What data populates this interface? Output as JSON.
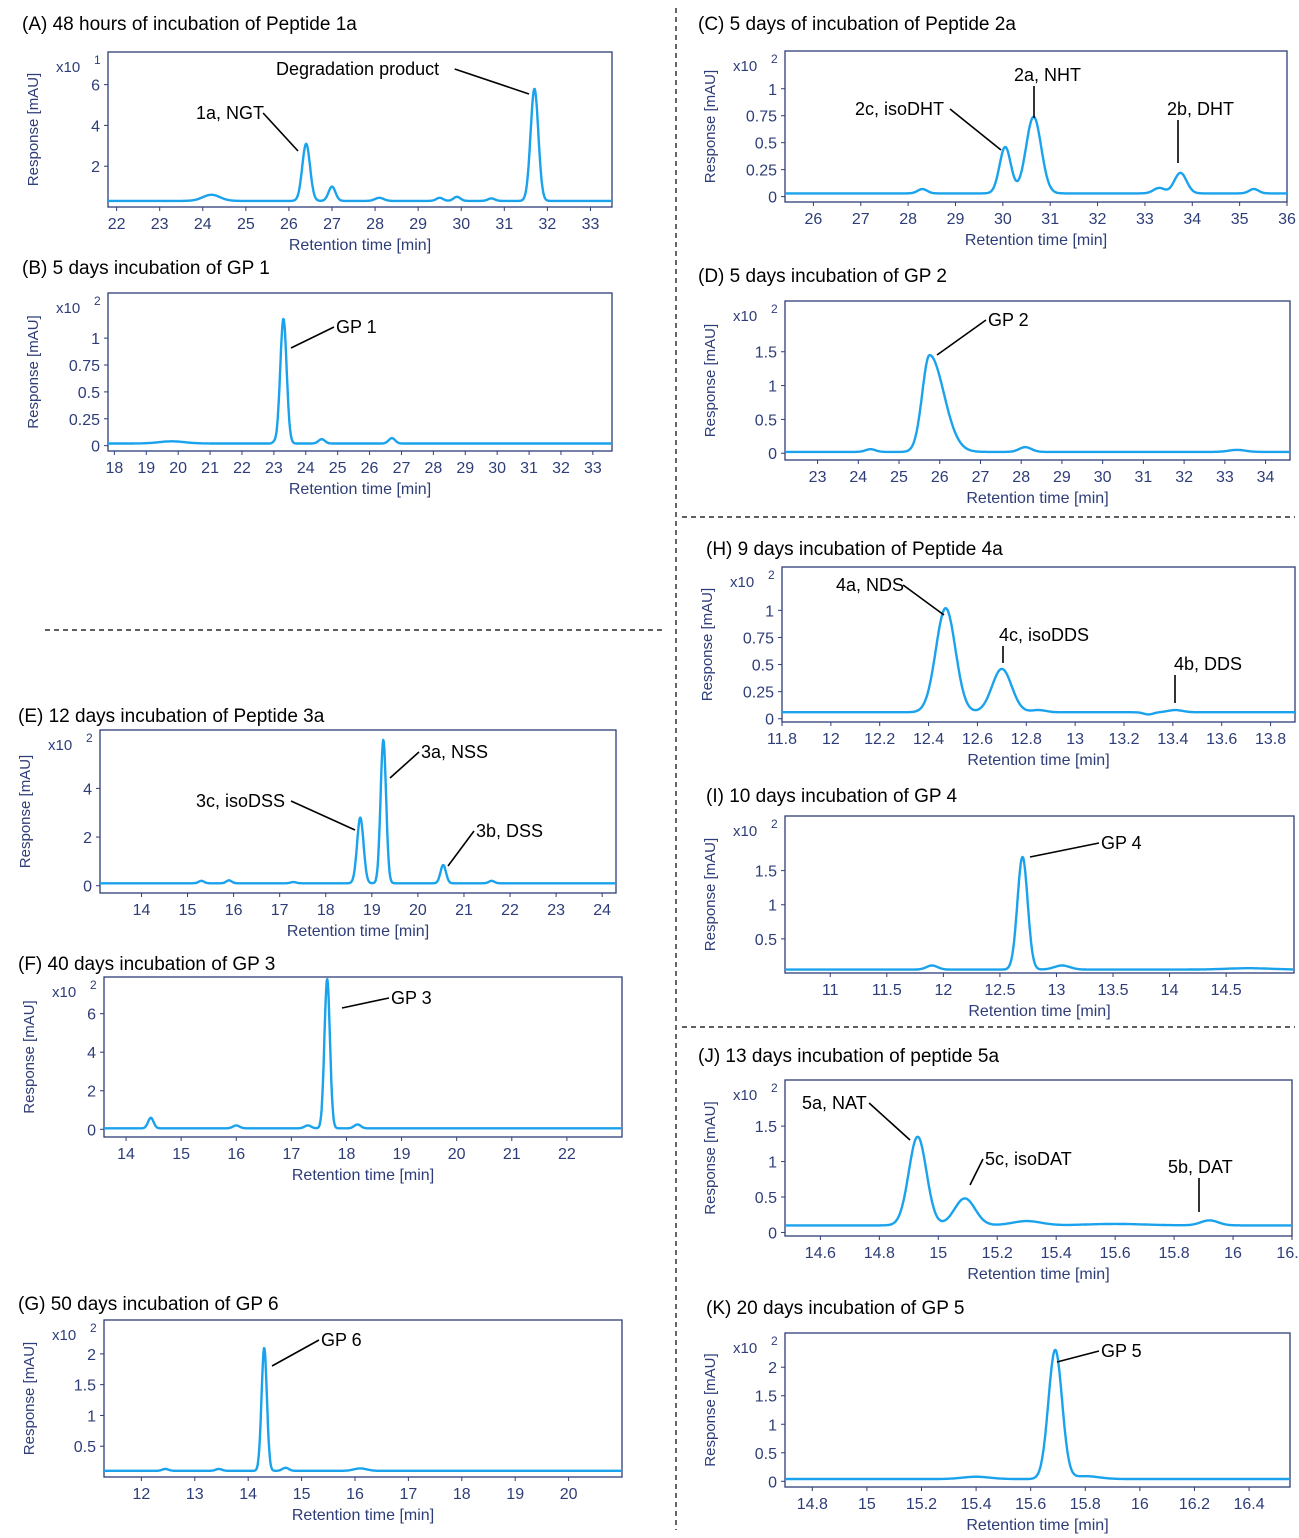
{
  "colors": {
    "line": "#1aa3ec",
    "frame": "#2e3d78",
    "axis_text": "#2e3d78",
    "label": "#000000",
    "divider": "#000000"
  },
  "common": {
    "xlabel": "Retention time [min]",
    "ylabel": "Response [mAU]"
  },
  "chart_data": [
    {
      "id": "A",
      "type": "line",
      "title": "(A) 48 hours of incubation of Peptide 1a",
      "multiplier": "x10",
      "exponent": "1",
      "xlim": [
        21.8,
        33.5
      ],
      "ylim": [
        0,
        7.6
      ],
      "xticks": [
        "22",
        "23",
        "24",
        "25",
        "26",
        "27",
        "28",
        "29",
        "30",
        "31",
        "32",
        "33"
      ],
      "yticks": [
        "2",
        "4",
        "6"
      ],
      "baseline": 0.3,
      "bumps": [
        [
          24.2,
          0.3,
          0.2
        ],
        [
          27.0,
          0.7,
          0.08
        ],
        [
          28.1,
          0.15,
          0.1
        ],
        [
          29.5,
          0.15,
          0.08
        ],
        [
          29.9,
          0.2,
          0.08
        ],
        [
          30.7,
          0.12,
          0.08
        ]
      ],
      "peaks": [
        {
          "label": "1a, NGT",
          "x": 26.4,
          "y": 3.1,
          "w": 0.09
        },
        {
          "label": "Degradation product",
          "x": 31.7,
          "y": 5.8,
          "w": 0.09
        }
      ]
    },
    {
      "id": "B",
      "type": "line",
      "title": "(B) 5 days incubation of GP 1",
      "multiplier": "x10",
      "exponent": "2",
      "xlim": [
        17.8,
        33.6
      ],
      "ylim": [
        -0.05,
        1.42
      ],
      "xticks": [
        "18",
        "19",
        "20",
        "21",
        "22",
        "23",
        "24",
        "25",
        "26",
        "27",
        "28",
        "29",
        "30",
        "31",
        "32",
        "33"
      ],
      "yticks": [
        "0",
        "0.25",
        "0.5",
        "0.75",
        "1"
      ],
      "baseline": 0.02,
      "bumps": [
        [
          19.8,
          0.02,
          0.4
        ],
        [
          23.0,
          0.01,
          0.05
        ],
        [
          24.5,
          0.04,
          0.1
        ],
        [
          26.7,
          0.05,
          0.1
        ]
      ],
      "peaks": [
        {
          "label": "GP 1",
          "x": 23.3,
          "y": 1.18,
          "w": 0.1
        }
      ]
    },
    {
      "id": "C",
      "type": "line",
      "title": "(C) 5 days of incubation of Peptide 2a",
      "multiplier": "x10",
      "exponent": "2",
      "xlim": [
        25.4,
        36.0
      ],
      "ylim": [
        -0.05,
        1.35
      ],
      "xticks": [
        "26",
        "27",
        "28",
        "29",
        "30",
        "31",
        "32",
        "33",
        "34",
        "35",
        "36"
      ],
      "yticks": [
        "0",
        "0.25",
        "0.5",
        "0.75",
        "1"
      ],
      "baseline": 0.03,
      "bumps": [
        [
          28.3,
          0.04,
          0.1
        ],
        [
          33.3,
          0.05,
          0.12
        ],
        [
          35.3,
          0.04,
          0.1
        ]
      ],
      "peaks": [
        {
          "label": "2c, isoDHT",
          "x": 30.05,
          "y": 0.46,
          "w": 0.12
        },
        {
          "label": "2a, NHT",
          "x": 30.65,
          "y": 0.74,
          "w": 0.16
        },
        {
          "label": "2b, DHT",
          "x": 33.75,
          "y": 0.22,
          "w": 0.13
        }
      ]
    },
    {
      "id": "D",
      "type": "line",
      "title": "(D) 5 days incubation of GP 2",
      "multiplier": "x10",
      "exponent": "2",
      "xlim": [
        22.2,
        34.6
      ],
      "ylim": [
        -0.1,
        2.25
      ],
      "xticks": [
        "23",
        "24",
        "25",
        "26",
        "27",
        "28",
        "29",
        "30",
        "31",
        "32",
        "33",
        "34"
      ],
      "yticks": [
        "0",
        "0.5",
        "1",
        "1.5"
      ],
      "baseline": 0.02,
      "bumps": [
        [
          24.3,
          0.04,
          0.12
        ],
        [
          28.1,
          0.07,
          0.15
        ],
        [
          33.3,
          0.03,
          0.2
        ]
      ],
      "peaks": [
        {
          "label": "GP 2",
          "x": 25.75,
          "y": 1.45,
          "w": 0.18,
          "tail": 0.35
        }
      ]
    },
    {
      "id": "E",
      "type": "line",
      "title": "(E) 12 days incubation of Peptide 3a",
      "multiplier": "x10",
      "exponent": "2",
      "xlim": [
        13.1,
        24.3
      ],
      "ylim": [
        -0.3,
        6.4
      ],
      "xticks": [
        "14",
        "15",
        "16",
        "17",
        "18",
        "19",
        "20",
        "21",
        "22",
        "23",
        "24"
      ],
      "yticks": [
        "0",
        "2",
        "4"
      ],
      "baseline": 0.1,
      "bumps": [
        [
          15.3,
          0.1,
          0.06
        ],
        [
          15.9,
          0.12,
          0.06
        ],
        [
          17.3,
          0.05,
          0.06
        ],
        [
          21.6,
          0.1,
          0.06
        ]
      ],
      "peaks": [
        {
          "label": "3c, isoDSS",
          "x": 18.75,
          "y": 2.8,
          "w": 0.07
        },
        {
          "label": "3a, NSS",
          "x": 19.25,
          "y": 6.0,
          "w": 0.06
        },
        {
          "label": "3b, DSS",
          "x": 20.55,
          "y": 0.85,
          "w": 0.06
        }
      ]
    },
    {
      "id": "F",
      "type": "line",
      "title": "(F) 40 days incubation of GP 3",
      "multiplier": "x10",
      "exponent": "2",
      "xlim": [
        13.6,
        23.0
      ],
      "ylim": [
        -0.4,
        7.9
      ],
      "xticks": [
        "14",
        "15",
        "16",
        "17",
        "18",
        "19",
        "20",
        "21",
        "22"
      ],
      "yticks": [
        "0",
        "2",
        "4",
        "6"
      ],
      "baseline": 0.05,
      "bumps": [
        [
          14.45,
          0.55,
          0.05
        ],
        [
          16.0,
          0.15,
          0.06
        ],
        [
          17.3,
          0.15,
          0.06
        ],
        [
          18.2,
          0.2,
          0.06
        ]
      ],
      "peaks": [
        {
          "label": "GP 3",
          "x": 17.65,
          "y": 7.8,
          "w": 0.05
        }
      ]
    },
    {
      "id": "G",
      "type": "line",
      "title": "(G) 50 days incubation of GP 6",
      "multiplier": "x10",
      "exponent": "2",
      "xlim": [
        11.3,
        21.0
      ],
      "ylim": [
        0,
        2.55
      ],
      "xticks": [
        "12",
        "13",
        "14",
        "15",
        "16",
        "17",
        "18",
        "19",
        "20"
      ],
      "yticks": [
        "0.5",
        "1",
        "1.5",
        "2"
      ],
      "baseline": 0.1,
      "bumps": [
        [
          12.45,
          0.03,
          0.06
        ],
        [
          13.45,
          0.03,
          0.06
        ],
        [
          14.7,
          0.05,
          0.06
        ],
        [
          16.1,
          0.04,
          0.12
        ]
      ],
      "peaks": [
        {
          "label": "GP 6",
          "x": 14.3,
          "y": 2.1,
          "w": 0.05
        }
      ]
    },
    {
      "id": "H",
      "type": "line",
      "title": "(H) 9 days incubation of Peptide 4a",
      "multiplier": "x10",
      "exponent": "2",
      "xlim": [
        11.8,
        13.9
      ],
      "ylim": [
        -0.03,
        1.4
      ],
      "xticks": [
        "11.8",
        "12",
        "12.2",
        "12.4",
        "12.6",
        "12.8",
        "13",
        "13.2",
        "13.4",
        "13.6",
        "13.8"
      ],
      "yticks": [
        "0",
        "0.25",
        "0.5",
        "0.75",
        "1"
      ],
      "baseline": 0.06,
      "bumps": [
        [
          12.85,
          0.02,
          0.03
        ],
        [
          13.3,
          -0.02,
          0.02
        ]
      ],
      "peaks": [
        {
          "label": "4a, NDS",
          "x": 12.47,
          "y": 1.02,
          "w": 0.04
        },
        {
          "label": "4c, isoDDS",
          "x": 12.7,
          "y": 0.46,
          "w": 0.04
        },
        {
          "label": "4b, DDS",
          "x": 13.41,
          "y": 0.08,
          "w": 0.03
        }
      ]
    },
    {
      "id": "I",
      "type": "line",
      "title": "(I) 10 days incubation of GP 4",
      "multiplier": "x10",
      "exponent": "2",
      "xlim": [
        10.6,
        15.1
      ],
      "ylim": [
        0,
        2.3
      ],
      "xticks": [
        "11",
        "11.5",
        "12",
        "12.5",
        "13",
        "13.5",
        "14",
        "14.5"
      ],
      "yticks": [
        "0.5",
        "1",
        "1.5"
      ],
      "baseline": 0.05,
      "bumps": [
        [
          11.9,
          0.06,
          0.05
        ],
        [
          13.05,
          0.06,
          0.07
        ],
        [
          14.7,
          0.02,
          0.2
        ]
      ],
      "peaks": [
        {
          "label": "GP 4",
          "x": 12.7,
          "y": 1.7,
          "w": 0.045
        }
      ]
    },
    {
      "id": "J",
      "type": "line",
      "title": "(J) 13 days incubation of peptide 5a",
      "multiplier": "x10",
      "exponent": "2",
      "xlim": [
        14.48,
        16.2
      ],
      "ylim": [
        -0.05,
        2.15
      ],
      "xticks": [
        "14.6",
        "14.8",
        "15",
        "15.2",
        "15.4",
        "15.6",
        "15.8",
        "16",
        "16.2"
      ],
      "yticks": [
        "0",
        "0.5",
        "1",
        "1.5"
      ],
      "baseline": 0.1,
      "bumps": [
        [
          15.3,
          0.06,
          0.05
        ],
        [
          15.6,
          0.02,
          0.1
        ]
      ],
      "peaks": [
        {
          "label": "5a, NAT",
          "x": 14.93,
          "y": 1.35,
          "w": 0.03
        },
        {
          "label": "5c, isoDAT",
          "x": 15.09,
          "y": 0.48,
          "w": 0.035
        },
        {
          "label": "5b, DAT",
          "x": 15.92,
          "y": 0.17,
          "w": 0.03
        }
      ]
    },
    {
      "id": "K",
      "type": "line",
      "title": "(K) 20 days incubation of GP 5",
      "multiplier": "x10",
      "exponent": "2",
      "xlim": [
        14.7,
        16.55
      ],
      "ylim": [
        -0.1,
        2.6
      ],
      "xticks": [
        "14.8",
        "15",
        "15.2",
        "15.4",
        "15.6",
        "15.8",
        "16",
        "16.2",
        "16.4"
      ],
      "yticks": [
        "0",
        "0.5",
        "1",
        "1.5",
        "2"
      ],
      "baseline": 0.04,
      "bumps": [
        [
          15.4,
          0.04,
          0.05
        ],
        [
          15.8,
          0.05,
          0.05
        ]
      ],
      "peaks": [
        {
          "label": "GP 5",
          "x": 15.69,
          "y": 2.3,
          "w": 0.025
        }
      ]
    }
  ]
}
